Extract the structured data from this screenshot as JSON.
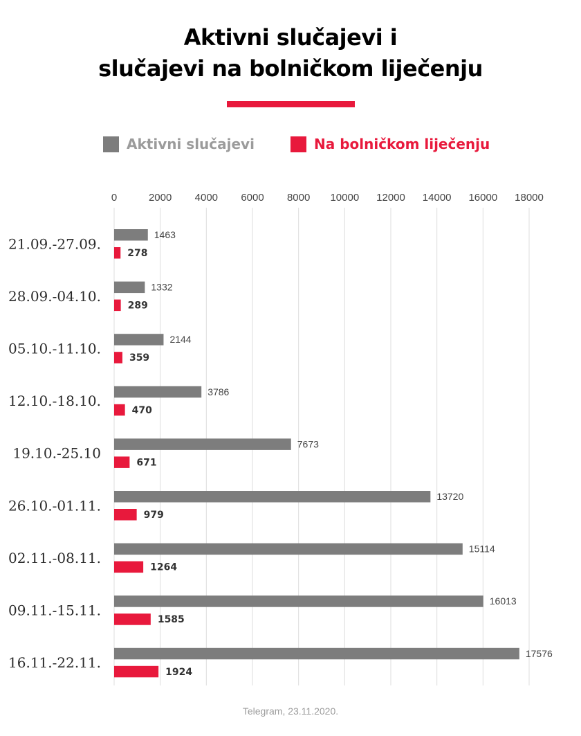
{
  "title_lines": [
    "Aktivni slučajevi i",
    "slučajevi na bolničkom liječenju"
  ],
  "colors": {
    "active": "#7d7d7d",
    "hospital": "#e8193c",
    "accent": "#e8193c",
    "grid": "#dcdcdc",
    "category_text": "#2a2a2a",
    "tick_text": "#444444",
    "value_text": "#444444",
    "hospital_value_text": "#333333",
    "legend_active_text": "#9b9b9b",
    "legend_hospital_text": "#e8193c",
    "source_text": "#9b9b9b"
  },
  "legend": {
    "active_label": "Aktivni slučajevi",
    "hospital_label": "Na bolničkom liječenju"
  },
  "source": "Telegram, 23.11.2020.",
  "chart_data": {
    "type": "bar",
    "orientation": "horizontal",
    "categories": [
      "21.09.-27.09.",
      "28.09.-04.10.",
      "05.10.-11.10.",
      "12.10.-18.10.",
      "19.10.-25.10",
      "26.10.-01.11.",
      "02.11.-08.11.",
      "09.11.-15.11.",
      "16.11.-22.11."
    ],
    "series": [
      {
        "name": "Aktivni slučajevi",
        "values": [
          1463,
          1332,
          2144,
          3786,
          7673,
          13720,
          15114,
          16013,
          17576
        ]
      },
      {
        "name": "Na bolničkom liječenju",
        "values": [
          278,
          289,
          359,
          470,
          671,
          979,
          1264,
          1585,
          1924
        ]
      }
    ],
    "xlim": [
      0,
      18000
    ],
    "xticks": [
      0,
      2000,
      4000,
      6000,
      8000,
      10000,
      12000,
      14000,
      16000,
      18000
    ],
    "grid": true,
    "axis_position": "top",
    "legend_position": "top"
  }
}
